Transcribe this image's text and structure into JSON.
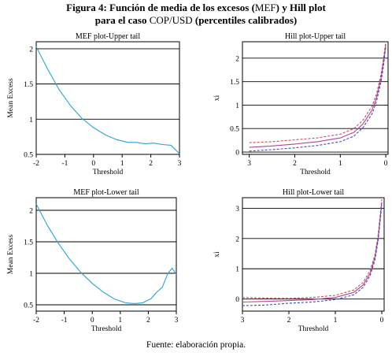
{
  "figure": {
    "title_line1_prefix": "Figura 4: Función de media de los excesos (",
    "title_line1_abbrev": "MEF",
    "title_line1_suffix": ") y Hill plot",
    "title_line2_prefix": "para el caso ",
    "title_line2_abbrev": "COP/USD",
    "title_line2_suffix": " (percentiles calibrados)",
    "source": "Fuente: elaboración propia."
  },
  "colors": {
    "mef_line": "#2aa4d4",
    "hill_blue": "#3c4fb0",
    "hill_magenta": "#b0479a",
    "hill_red": "#d44a5a"
  },
  "chart_data": [
    {
      "id": "mef_upper",
      "type": "line",
      "title": "MEF plot-Upper tail",
      "xlabel": "Threshold",
      "ylabel": "Mean Excess",
      "xlim": [
        -2,
        3
      ],
      "ylim": [
        0.5,
        2.1
      ],
      "xticks": [
        -2,
        -1,
        0,
        1,
        2,
        3
      ],
      "xtick_labels": [
        "-2",
        "-1",
        "0",
        "1",
        "2",
        "3"
      ],
      "yticks": [
        0.5,
        1,
        1.5,
        2
      ],
      "ytick_labels": [
        "0.5",
        "1",
        "1.5",
        "2"
      ],
      "grid_y": true,
      "series": [
        {
          "x": [
            -2.0,
            -1.6,
            -1.2,
            -0.8,
            -0.4,
            0.0,
            0.4,
            0.8,
            1.2,
            1.5,
            1.8,
            2.1,
            2.4,
            2.7,
            2.85,
            3.0
          ],
          "y": [
            2.03,
            1.71,
            1.42,
            1.19,
            1.01,
            0.88,
            0.78,
            0.71,
            0.67,
            0.67,
            0.65,
            0.66,
            0.64,
            0.63,
            0.57,
            0.51
          ]
        }
      ]
    },
    {
      "id": "hill_upper",
      "type": "line",
      "title": "Hill plot-Upper tail",
      "xlabel": "Threshold",
      "ylabel": "xi",
      "xlim": [
        3.15,
        -0.05
      ],
      "ylim": [
        -0.05,
        2.35
      ],
      "xticks": [
        3,
        2,
        1,
        0
      ],
      "xtick_labels": [
        "3",
        "2",
        "1",
        "0"
      ],
      "yticks": [
        0,
        0.5,
        1,
        1.5,
        2
      ],
      "ytick_labels": [
        "0",
        "0.5",
        "1",
        "1.5",
        "2"
      ],
      "grid_y": true,
      "series": [
        {
          "style": "dashed",
          "x": [
            3.0,
            2.5,
            2.0,
            1.5,
            1.0,
            0.7,
            0.5,
            0.3,
            0.2,
            0.1,
            0.05,
            0.0
          ],
          "y": [
            0.2,
            0.22,
            0.26,
            0.3,
            0.38,
            0.5,
            0.68,
            0.98,
            1.25,
            1.68,
            2.0,
            2.35
          ]
        },
        {
          "style": "solid",
          "x": [
            3.0,
            2.5,
            2.0,
            1.5,
            1.0,
            0.7,
            0.5,
            0.3,
            0.2,
            0.1,
            0.05,
            0.0
          ],
          "y": [
            0.1,
            0.13,
            0.17,
            0.22,
            0.3,
            0.42,
            0.6,
            0.9,
            1.17,
            1.6,
            1.92,
            2.3
          ]
        },
        {
          "style": "dashed",
          "x": [
            3.0,
            2.5,
            2.0,
            1.5,
            1.0,
            0.7,
            0.5,
            0.3,
            0.2,
            0.1,
            0.05,
            0.0
          ],
          "y": [
            0.02,
            0.05,
            0.09,
            0.14,
            0.22,
            0.34,
            0.52,
            0.82,
            1.09,
            1.52,
            1.84,
            2.25
          ]
        }
      ]
    },
    {
      "id": "mef_lower",
      "type": "line",
      "title": "MEF plot-Lower tail",
      "xlabel": "Threshold",
      "ylabel": "Mean Excess",
      "xlim": [
        -2,
        3
      ],
      "ylim": [
        0.4,
        2.2
      ],
      "xticks": [
        -2,
        -1,
        0,
        1,
        2,
        3
      ],
      "xtick_labels": [
        "-2",
        "-1",
        "0",
        "1",
        "2",
        "3"
      ],
      "yticks": [
        0.5,
        1,
        1.5,
        2
      ],
      "ytick_labels": [
        "0.5",
        "1",
        "1.5",
        "2"
      ],
      "grid_y": true,
      "series": [
        {
          "x": [
            -2.0,
            -1.6,
            -1.2,
            -0.8,
            -0.4,
            0.0,
            0.4,
            0.8,
            1.2,
            1.5,
            1.8,
            2.1,
            2.3,
            2.5,
            2.7,
            2.85,
            3.0
          ],
          "y": [
            2.1,
            1.76,
            1.47,
            1.22,
            1.01,
            0.84,
            0.7,
            0.59,
            0.53,
            0.52,
            0.53,
            0.6,
            0.7,
            0.78,
            1.0,
            1.08,
            0.98
          ]
        }
      ]
    },
    {
      "id": "hill_lower",
      "type": "line",
      "title": "Hill plot-Lower tail",
      "xlabel": "Threshold",
      "ylabel": "xi",
      "xlim": [
        3,
        -0.05
      ],
      "ylim": [
        -0.4,
        3.35
      ],
      "xticks": [
        3,
        2,
        1,
        0
      ],
      "xtick_labels": [
        "3",
        "2",
        "1",
        "0"
      ],
      "yticks": [
        0,
        1,
        2,
        3
      ],
      "ytick_labels": [
        "0",
        "1",
        "2",
        "3"
      ],
      "grid_y": true,
      "series": [
        {
          "style": "dashed",
          "x": [
            3.0,
            2.5,
            2.0,
            1.5,
            1.0,
            0.6,
            0.4,
            0.25,
            0.15,
            0.08,
            0.04,
            0.0
          ],
          "y": [
            0.05,
            0.03,
            0.02,
            0.05,
            0.12,
            0.3,
            0.55,
            0.95,
            1.45,
            2.1,
            2.7,
            3.3
          ]
        },
        {
          "style": "solid",
          "x": [
            3.0,
            2.5,
            2.0,
            1.5,
            1.0,
            0.6,
            0.4,
            0.25,
            0.15,
            0.08,
            0.04,
            0.0
          ],
          "y": [
            -0.1,
            -0.08,
            -0.05,
            -0.02,
            0.05,
            0.22,
            0.47,
            0.86,
            1.36,
            2.0,
            2.6,
            3.2
          ]
        },
        {
          "style": "dashed",
          "x": [
            3.0,
            2.5,
            2.0,
            1.5,
            1.0,
            0.6,
            0.4,
            0.25,
            0.15,
            0.08,
            0.04,
            0.0
          ],
          "y": [
            -0.22,
            -0.2,
            -0.14,
            -0.1,
            -0.02,
            0.14,
            0.39,
            0.78,
            1.28,
            1.92,
            2.52,
            3.1
          ]
        }
      ]
    }
  ]
}
